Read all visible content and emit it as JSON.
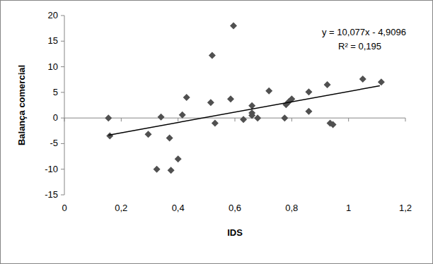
{
  "chart_data": {
    "type": "scatter",
    "x_label": "IDS",
    "y_label": "Balança comercial",
    "annotations": [
      "y = 10,077x - 4,9096",
      "R² = 0,195"
    ],
    "xlim": [
      0,
      1.2
    ],
    "xticks": [
      0,
      {
        "value": 0.2,
        "label": "0,2"
      },
      {
        "value": 0.4,
        "label": "0,4"
      },
      {
        "value": 0.6,
        "label": "0,6"
      },
      {
        "value": 0.8,
        "label": "0,8"
      },
      1,
      {
        "value": 1.2,
        "label": "1,2"
      }
    ],
    "ylim": [
      -15,
      20
    ],
    "yticks": [
      -15,
      -10,
      -5,
      0,
      5,
      10,
      15,
      20
    ],
    "grid": false,
    "series": [
      {
        "type": "scatter",
        "marker": "diamond",
        "color": "#505050",
        "x": [
          0.155,
          0.16,
          0.295,
          0.34,
          0.325,
          0.37,
          0.375,
          0.4,
          0.415,
          0.43,
          0.515,
          0.52,
          0.53,
          0.585,
          0.595,
          0.63,
          0.66,
          0.66,
          0.66,
          0.68,
          0.72,
          0.775,
          0.78,
          0.79,
          0.8,
          0.86,
          0.86,
          0.925,
          0.935,
          0.945,
          1.05,
          1.115
        ],
        "values": [
          0,
          -3.5,
          -3.2,
          0.2,
          -10,
          -3.9,
          -10.2,
          -8,
          0.6,
          4,
          3,
          12.2,
          -1,
          3.7,
          18,
          -0.3,
          2.4,
          1,
          0.5,
          0,
          5.3,
          0,
          2.6,
          3.2,
          3.7,
          5.1,
          1.3,
          6.5,
          -1,
          -1.3,
          7.6,
          7
        ]
      },
      {
        "type": "line",
        "line_style": "solid",
        "color": "#000000",
        "x": [
          0.155,
          1.11
        ],
        "values": [
          -3.35,
          6.28
        ]
      }
    ]
  }
}
